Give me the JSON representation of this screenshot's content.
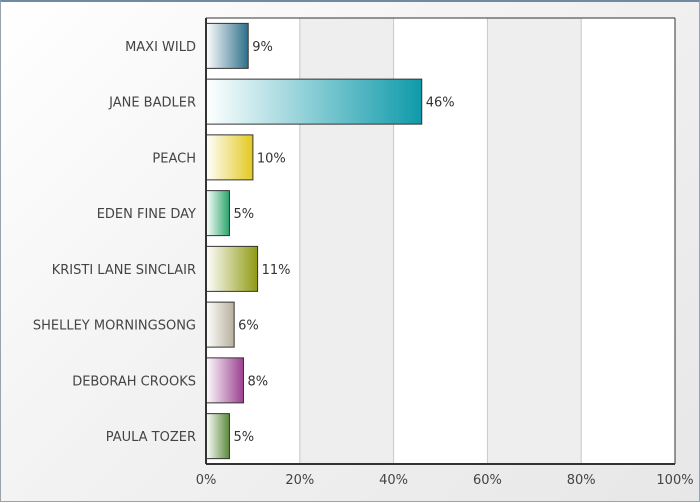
{
  "chart_data": {
    "type": "bar",
    "orientation": "horizontal",
    "categories": [
      "MAXI WILD",
      "JANE BADLER",
      "PEACH",
      "EDEN FINE DAY",
      "KRISTI LANE SINCLAIR",
      "SHELLEY MORNINGSONG",
      "DEBORAH CROOKS",
      "PAULA TOZER"
    ],
    "values": [
      9,
      46,
      10,
      5,
      11,
      6,
      8,
      5
    ],
    "value_labels": [
      "9%",
      "46%",
      "10%",
      "5%",
      "11%",
      "6%",
      "8%",
      "5%"
    ],
    "colors": [
      "#2e6f8a",
      "#0f9aaa",
      "#e3c81f",
      "#2aa56a",
      "#8f9a12",
      "#b7b09c",
      "#9a3f8f",
      "#5a8a3a"
    ],
    "xlim": [
      0,
      100
    ],
    "x_ticks": [
      0,
      20,
      40,
      60,
      80,
      100
    ],
    "x_tick_labels": [
      "0%",
      "20%",
      "40%",
      "60%",
      "80%",
      "100%"
    ],
    "grid": true,
    "title": "",
    "xlabel": "",
    "ylabel": ""
  }
}
